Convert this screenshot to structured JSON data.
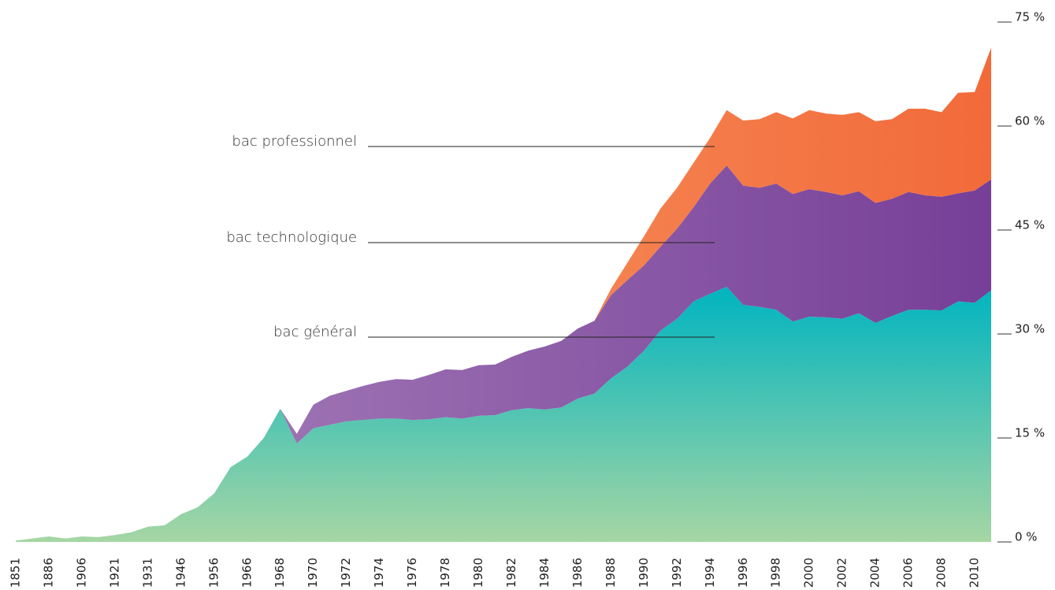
{
  "chart_data": {
    "type": "stacked_area",
    "categories": [
      "1851",
      null,
      "1886",
      null,
      "1906",
      null,
      "1921",
      null,
      "1931",
      null,
      "1946",
      null,
      "1956",
      null,
      "1966",
      null,
      "1968",
      null,
      "1970",
      null,
      "1972",
      null,
      "1974",
      null,
      "1976",
      null,
      "1978",
      null,
      "1980",
      null,
      "1982",
      null,
      "1984",
      null,
      "1986",
      null,
      "1988",
      null,
      "1990",
      null,
      "1992",
      null,
      "1994",
      null,
      "1996",
      null,
      "1998",
      null,
      "2000",
      null,
      "2002",
      null,
      "2004",
      null,
      "2006",
      null,
      "2008",
      null,
      "2010",
      null
    ],
    "series": [
      {
        "name": "bac général",
        "gradient": [
          "#00b4c0",
          "#a6d6a4"
        ],
        "values": [
          0.2,
          0.5,
          0.8,
          0.5,
          0.8,
          0.7,
          1.0,
          1.4,
          2.2,
          2.4,
          4.0,
          5.0,
          7.0,
          10.8,
          12.3,
          15.0,
          19.2,
          14.2,
          16.4,
          16.9,
          17.4,
          17.6,
          17.8,
          17.8,
          17.6,
          17.7,
          18.0,
          17.8,
          18.2,
          18.3,
          19.0,
          19.3,
          19.1,
          19.4,
          20.7,
          21.4,
          23.6,
          25.3,
          27.6,
          30.5,
          32.2,
          34.7,
          35.8,
          36.8,
          34.2,
          33.9,
          33.5,
          31.8,
          32.5,
          32.4,
          32.2,
          33.0,
          31.6,
          32.6,
          33.5,
          33.5,
          33.4,
          34.7,
          34.5,
          36.3
        ]
      },
      {
        "name": "bac technologique",
        "gradient": [
          "#ab85bd",
          "#763f98"
        ],
        "values": [
          0,
          0,
          0,
          0,
          0,
          0,
          0,
          0,
          0,
          0,
          0,
          0,
          0,
          0,
          0,
          0,
          0,
          1.4,
          3.4,
          4.2,
          4.4,
          4.9,
          5.3,
          5.7,
          5.8,
          6.4,
          6.9,
          7.0,
          7.3,
          7.3,
          7.7,
          8.3,
          9.1,
          9.6,
          10.1,
          10.5,
          12.0,
          12.5,
          12.3,
          12.1,
          13.0,
          13.6,
          15.9,
          17.5,
          17.2,
          17.2,
          18.2,
          18.4,
          18.4,
          18.1,
          17.8,
          17.6,
          17.3,
          16.9,
          17.0,
          16.5,
          16.4,
          15.6,
          16.2,
          16.0
        ]
      },
      {
        "name": "bac professionnel",
        "gradient": [
          "#f7a66e",
          "#f26a3a"
        ],
        "values": [
          0,
          0,
          0,
          0,
          0,
          0,
          0,
          0,
          0,
          0,
          0,
          0,
          0,
          0,
          0,
          0,
          0,
          0,
          0,
          0,
          0,
          0,
          0,
          0,
          0,
          0,
          0,
          0,
          0,
          0,
          0,
          0,
          0,
          0,
          0,
          0,
          0.9,
          2.5,
          4.2,
          5.5,
          5.9,
          6.4,
          6.6,
          8.0,
          9.4,
          9.9,
          10.3,
          10.9,
          11.4,
          11.3,
          11.6,
          11.4,
          11.8,
          11.5,
          12.0,
          12.5,
          12.2,
          14.5,
          14.2,
          19.0
        ]
      }
    ],
    "ylim": [
      0,
      75
    ],
    "yticks": [
      {
        "value": 0,
        "label": "0 %"
      },
      {
        "value": 15,
        "label": "15 %"
      },
      {
        "value": 30,
        "label": "30 %"
      },
      {
        "value": 45,
        "label": "45 %"
      },
      {
        "value": 60,
        "label": "60 %"
      },
      {
        "value": 75,
        "label": "75 %"
      }
    ]
  }
}
